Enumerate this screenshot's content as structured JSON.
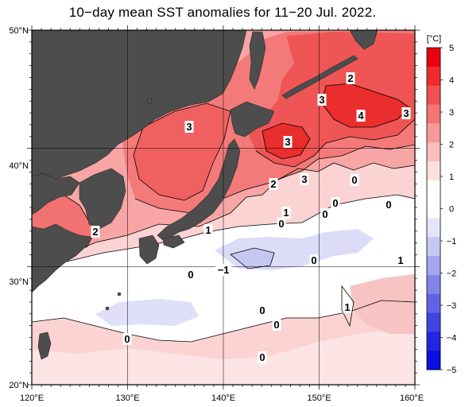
{
  "title": "10−day mean SST anomalies for 11−20 Jul. 2022.",
  "map": {
    "lon_range": [
      120,
      160
    ],
    "lat_range": [
      20,
      50
    ],
    "lon_labels": [
      "120°E",
      "130°E",
      "140°E",
      "150°E",
      "160°E"
    ],
    "lat_labels": [
      "50°N",
      "40°N",
      "30°N",
      "20°N"
    ],
    "land_color": "#4d4d4d"
  },
  "colorbar": {
    "unit": "[°C]",
    "ticks": [
      "5",
      "4",
      "3",
      "2",
      "1",
      "0",
      "−1",
      "−2",
      "−3",
      "−4",
      "−5"
    ],
    "colors": [
      "#e8000f",
      "#ee2b2b",
      "#f25050",
      "#f57575",
      "#f89a9a",
      "#fbbdbd",
      "#fde0e0",
      "#ffffff",
      "#ffffff",
      "#e4e4fb",
      "#c6c7f5",
      "#a5a6ef",
      "#8384ea",
      "#6163e6",
      "#4144e4",
      "#2226e0",
      "#0a0fde"
    ]
  },
  "contour_labels": [
    {
      "text": "2",
      "color": "#000000"
    },
    {
      "text": "3",
      "color": "#000000"
    },
    {
      "text": "3",
      "color": "#000000"
    },
    {
      "text": "4",
      "color": "#000000"
    },
    {
      "text": "3",
      "color": "#000000"
    },
    {
      "text": "3",
      "color": "#000000"
    },
    {
      "text": "4",
      "color": "#000000"
    },
    {
      "text": "2",
      "color": "#000000"
    },
    {
      "text": "3",
      "color": "#000000"
    },
    {
      "text": "0",
      "color": "#000000"
    },
    {
      "text": "1",
      "color": "#000000"
    },
    {
      "text": "0",
      "color": "#000000"
    },
    {
      "text": "0",
      "color": "#000000"
    },
    {
      "text": "0",
      "color": "#000000"
    },
    {
      "text": "0",
      "color": "#000000"
    },
    {
      "text": "2",
      "color": "#000000"
    },
    {
      "text": "1",
      "color": "#000000"
    },
    {
      "text": "0",
      "color": "#000000"
    },
    {
      "text": "−1",
      "color": "#000000"
    },
    {
      "text": "0",
      "color": "#000000"
    },
    {
      "text": "1",
      "color": "#000000"
    },
    {
      "text": "0",
      "color": "#000000"
    },
    {
      "text": "1",
      "color": "#000000"
    },
    {
      "text": "0",
      "color": "#000000"
    },
    {
      "text": "0",
      "color": "#000000"
    },
    {
      "text": "0",
      "color": "#000000"
    }
  ]
}
